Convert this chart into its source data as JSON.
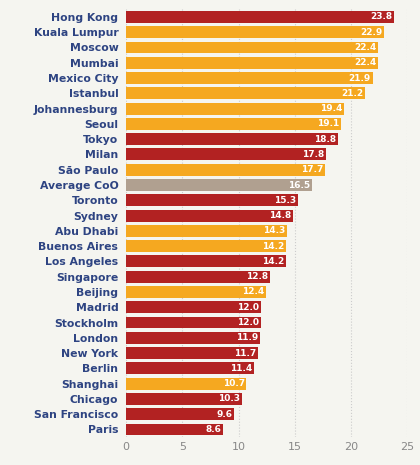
{
  "categories": [
    "Paris",
    "San Francisco",
    "Chicago",
    "Shanghai",
    "Berlin",
    "New York",
    "London",
    "Stockholm",
    "Madrid",
    "Beijing",
    "Singapore",
    "Los Angeles",
    "Buenos Aires",
    "Abu Dhabi",
    "Sydney",
    "Toronto",
    "Average CoO",
    "São Paulo",
    "Milan",
    "Tokyo",
    "Seoul",
    "Johannesburg",
    "Istanbul",
    "Mexico City",
    "Mumbai",
    "Moscow",
    "Kuala Lumpur",
    "Hong Kong"
  ],
  "values": [
    8.6,
    9.6,
    10.3,
    10.7,
    11.4,
    11.7,
    11.9,
    12.0,
    12.0,
    12.4,
    12.8,
    14.2,
    14.2,
    14.3,
    14.8,
    15.3,
    16.5,
    17.7,
    17.8,
    18.8,
    19.1,
    19.4,
    21.2,
    21.9,
    22.4,
    22.4,
    22.9,
    23.8
  ],
  "colors": [
    "#b22222",
    "#b22222",
    "#b22222",
    "#f5a820",
    "#b22222",
    "#b22222",
    "#b22222",
    "#b22222",
    "#b22222",
    "#f5a820",
    "#b22222",
    "#b22222",
    "#f5a820",
    "#f5a820",
    "#b22222",
    "#b22222",
    "#b0a090",
    "#f5a820",
    "#b22222",
    "#b22222",
    "#f5a820",
    "#f5a820",
    "#f5a820",
    "#f5a820",
    "#f5a820",
    "#f5a820",
    "#f5a820",
    "#b22222"
  ],
  "xlim": [
    0,
    25
  ],
  "xticks": [
    0,
    5,
    10,
    15,
    20,
    25
  ],
  "bar_height": 0.78,
  "value_fontsize": 6.5,
  "label_fontsize": 7.8,
  "tick_fontsize": 8.0,
  "bg_color": "#f5f5f0",
  "label_color": "#2e4482",
  "value_text_color": "#ffffff",
  "grid_color": "#cccccc",
  "tick_color": "#888888"
}
